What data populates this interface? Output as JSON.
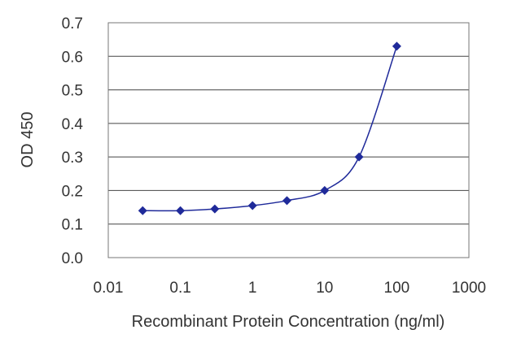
{
  "chart_data": {
    "type": "line",
    "xlabel": "Recombinant Protein Concentration (ng/ml)",
    "ylabel": "OD 450",
    "x_scale": "log",
    "xlim": [
      0.01,
      1000
    ],
    "ylim": [
      0,
      0.7
    ],
    "x_ticks": [
      "0.01",
      "0.1",
      "1",
      "10",
      "100",
      "1000"
    ],
    "y_ticks": [
      "0.0",
      "0.1",
      "0.2",
      "0.3",
      "0.4",
      "0.5",
      "0.6",
      "0.7"
    ],
    "grid": "horizontal",
    "legend": "none",
    "series": [
      {
        "color": "#1f2a9a",
        "x": [
          0.03,
          0.1,
          0.3,
          1,
          3,
          10,
          30,
          100
        ],
        "y": [
          0.14,
          0.14,
          0.145,
          0.155,
          0.17,
          0.2,
          0.3,
          0.63
        ]
      }
    ]
  }
}
